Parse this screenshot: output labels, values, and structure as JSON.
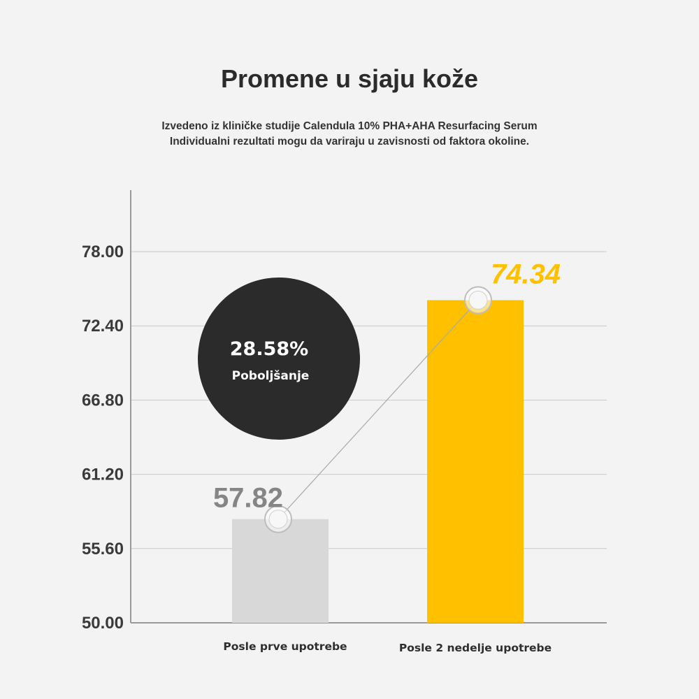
{
  "title": "Promene u sjaju kože",
  "subtitle_line1": "Izvedeno iz kliničke studije  Calendula 10% PHA+AHA Resurfacing Serum",
  "subtitle_line2": "Individualni rezultati mogu da variraju u zavisnosti od faktora okoline.",
  "badge": {
    "value": "28.58%",
    "label": "Poboljšanje"
  },
  "colors": {
    "before": "#d8d8d8",
    "after": "#ffc000",
    "before_label": "#858585",
    "after_label": "#ffc000",
    "badge": "#2b2b2b",
    "grid": "#c9c9c9",
    "axis": "#999999",
    "connector": "#aaaaaa"
  },
  "chart_data": {
    "type": "bar",
    "categories": [
      "Posle prve upotrebe",
      "Posle 2 nedelje upotrebe"
    ],
    "values": [
      57.82,
      74.34
    ],
    "value_labels": [
      "57.82",
      "74.34"
    ],
    "yticks": [
      "50.00",
      "55.60",
      "61.20",
      "66.80",
      "72.40",
      "78.00"
    ],
    "ylim": [
      50.0,
      78.0
    ],
    "grid": true,
    "connector_line": true
  }
}
